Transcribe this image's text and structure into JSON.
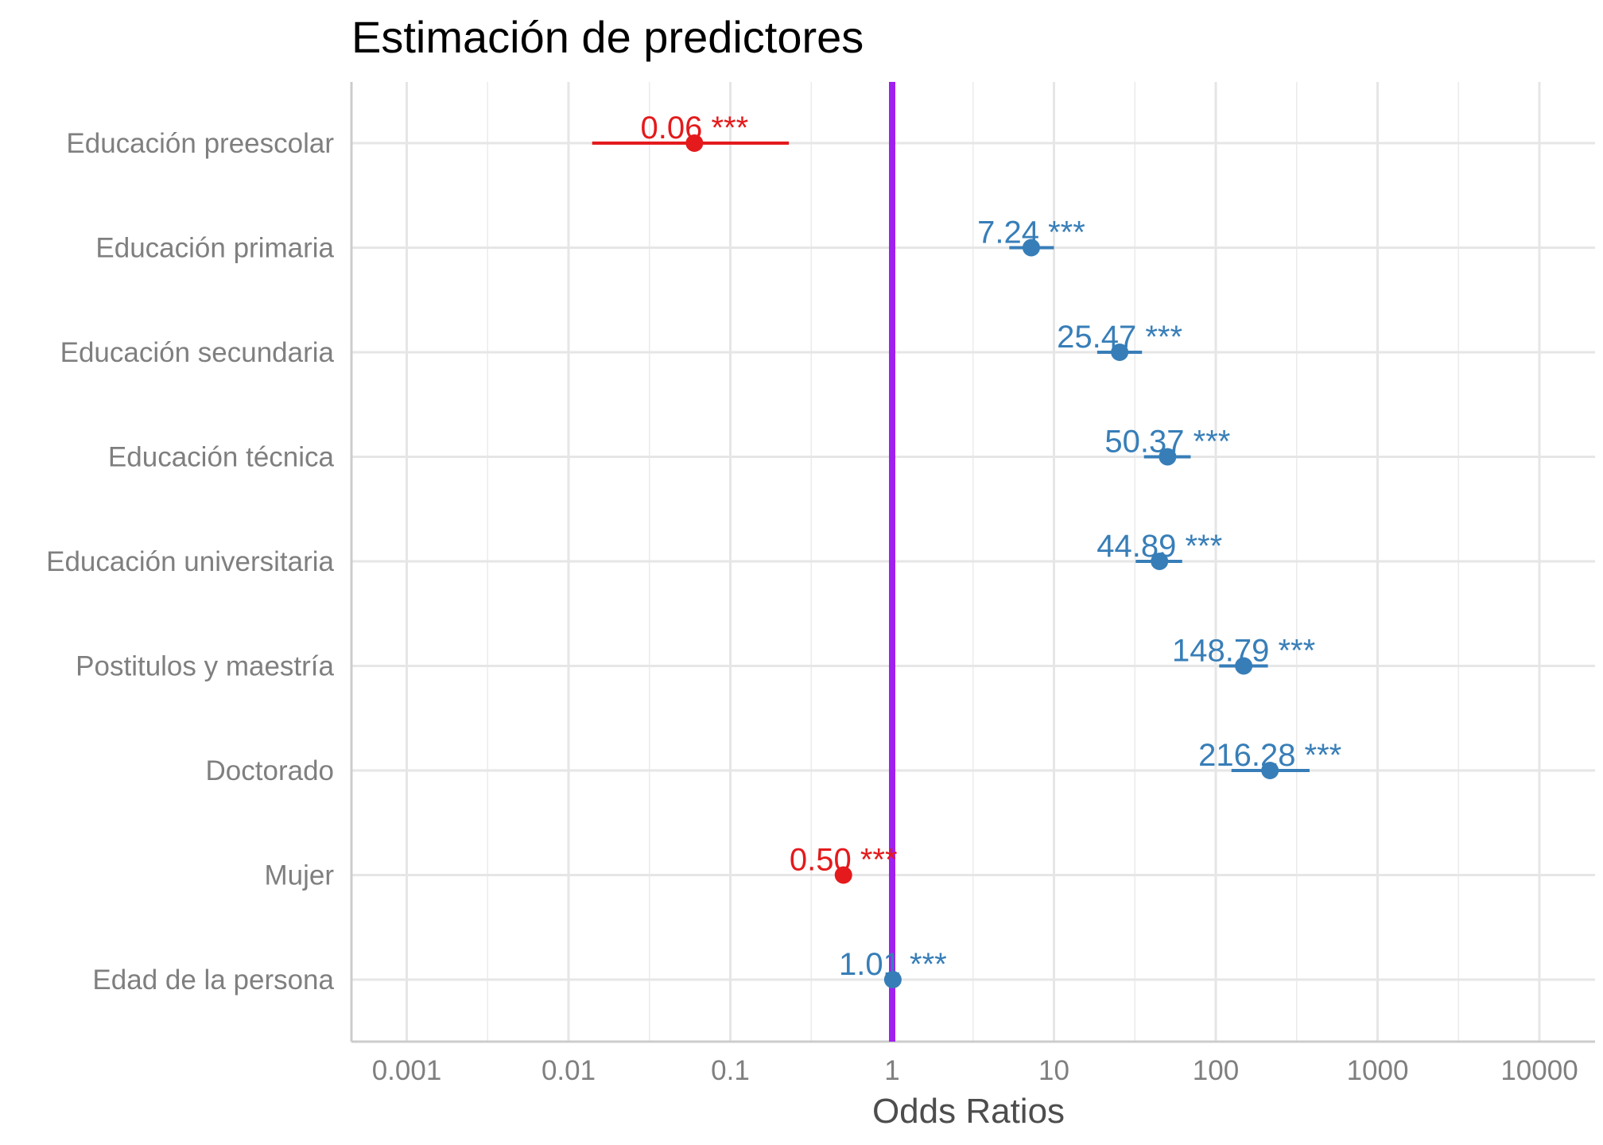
{
  "chart_data": {
    "type": "scatter",
    "subtype": "forest-plot",
    "title": "Estimación de predictores",
    "xlabel": "Odds Ratios",
    "ylabel": "",
    "x_scale": "log10",
    "xlim": [
      0.0005,
      20000
    ],
    "x_ticks": [
      0.001,
      0.01,
      0.1,
      1,
      10,
      100,
      1000,
      10000
    ],
    "x_tick_labels": [
      "0.001",
      "0.01",
      "0.1",
      "1",
      "10",
      "100",
      "1000",
      "10000"
    ],
    "reference_line": {
      "x": 1,
      "color": "#a020f0"
    },
    "grid": true,
    "legend": "none",
    "colors": {
      "negative": "#e41a1c",
      "positive": "#377eb8"
    },
    "terms": [
      {
        "label": "Educación preescolar",
        "estimate": 0.06,
        "ci_low": 0.014,
        "ci_high": 0.23,
        "stars": "***",
        "estimate_label": "0.06",
        "direction": "negative"
      },
      {
        "label": "Educación primaria",
        "estimate": 7.24,
        "ci_low": 5.3,
        "ci_high": 10.0,
        "stars": "***",
        "estimate_label": "7.24",
        "direction": "positive"
      },
      {
        "label": "Educación secundaria",
        "estimate": 25.47,
        "ci_low": 18.5,
        "ci_high": 35.0,
        "stars": "***",
        "estimate_label": "25.47",
        "direction": "positive"
      },
      {
        "label": "Educación técnica",
        "estimate": 50.37,
        "ci_low": 36.0,
        "ci_high": 70.0,
        "stars": "***",
        "estimate_label": "50.37",
        "direction": "positive"
      },
      {
        "label": "Educación universitaria",
        "estimate": 44.89,
        "ci_low": 32.0,
        "ci_high": 62.0,
        "stars": "***",
        "estimate_label": "44.89",
        "direction": "positive"
      },
      {
        "label": "Postitulos y maestría",
        "estimate": 148.79,
        "ci_low": 105.0,
        "ci_high": 210.0,
        "stars": "***",
        "estimate_label": "148.79",
        "direction": "positive"
      },
      {
        "label": "Doctorado",
        "estimate": 216.28,
        "ci_low": 125.0,
        "ci_high": 380.0,
        "stars": "***",
        "estimate_label": "216.28",
        "direction": "positive"
      },
      {
        "label": "Mujer",
        "estimate": 0.5,
        "ci_low": 0.48,
        "ci_high": 0.52,
        "stars": "***",
        "estimate_label": "0.50",
        "direction": "negative"
      },
      {
        "label": "Edad de la persona",
        "estimate": 1.01,
        "ci_low": 1.005,
        "ci_high": 1.015,
        "stars": "***",
        "estimate_label": "1.01",
        "direction": "positive"
      }
    ]
  }
}
